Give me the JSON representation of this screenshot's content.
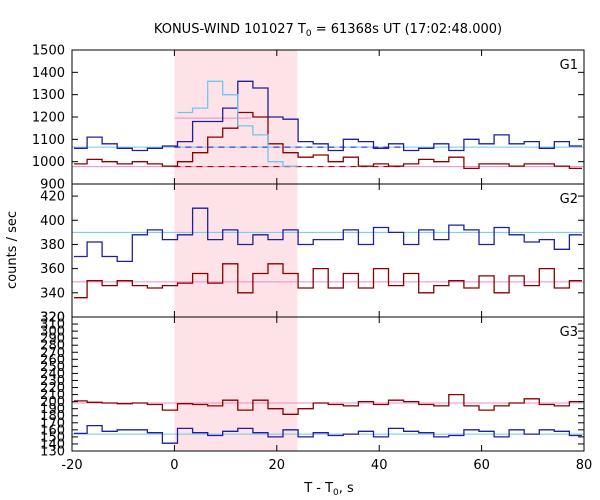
{
  "chart_data": {
    "type": "line",
    "title": "KONUS-WIND 101027 T",
    "title_sub": "0",
    "title_rest": " = 61368s UT (17:02:48.000)",
    "xlabel": "T - T",
    "xlabel_sub": "0",
    "xlabel_rest": ", s",
    "ylabel": "counts / sec",
    "xlim": [
      -20,
      80
    ],
    "xticks": [
      -20,
      0,
      20,
      40,
      60,
      80
    ],
    "grid": false,
    "colors": {
      "blue": "#1f1f9e",
      "red": "#8b0000",
      "lightblue": "#6ec6f0",
      "pink": "#f08cc8",
      "shade": "#fde3e7"
    },
    "highlight_interval": [
      0,
      24
    ],
    "bin_width": 2.944,
    "x_start": -20,
    "panels": [
      {
        "label": "G1",
        "ylim": [
          900,
          1500
        ],
        "yticks": [
          900,
          1000,
          1100,
          1200,
          1300,
          1400,
          1500
        ],
        "series": [
          {
            "color": "blue",
            "values": [
              1060,
              1110,
              1080,
              1060,
              1050,
              1060,
              1070,
              1090,
              1180,
              1180,
              1240,
              1360,
              1330,
              1200,
              1190,
              1090,
              1080,
              1050,
              1100,
              1090,
              1060,
              1080,
              1050,
              1060,
              1080,
              1050,
              1100,
              1080,
              1120,
              1080,
              1090,
              1060,
              1090,
              1070,
              1060
            ]
          },
          {
            "color": "red",
            "values": [
              990,
              1010,
              1000,
              990,
              1000,
              990,
              980,
              1000,
              1040,
              1110,
              1150,
              1220,
              1200,
              1080,
              1040,
              1020,
              1030,
              1000,
              1020,
              980,
              990,
              980,
              990,
              1010,
              1000,
              1020,
              970,
              990,
              990,
              980,
              990,
              990,
              980,
              970,
              990
            ]
          },
          {
            "color": "lightblue",
            "values": [
              null,
              null,
              null,
              null,
              null,
              null,
              null,
              1220,
              1240,
              1360,
              1300,
              1160,
              1120,
              1000,
              980
            ]
          }
        ],
        "fits": [
          {
            "color": "lightblue",
            "value": 1065
          },
          {
            "color": "pink",
            "value": 978
          },
          {
            "color": "blue",
            "value": 1065,
            "dashed": true,
            "range": [
              0,
              45
            ]
          },
          {
            "color": "red",
            "value": 978,
            "dashed": true,
            "range": [
              0,
              45
            ]
          },
          {
            "color": "pink",
            "value": 1195,
            "range": [
              0,
              15
            ]
          }
        ]
      },
      {
        "label": "G2",
        "ylim": [
          320,
          430
        ],
        "yticks": [
          320,
          340,
          360,
          380,
          400,
          420
        ],
        "series": [
          {
            "color": "blue",
            "values": [
              370,
              382,
              370,
              366,
              388,
              392,
              384,
              388,
              410,
              384,
              392,
              380,
              388,
              384,
              392,
              380,
              384,
              384,
              392,
              380,
              394,
              390,
              380,
              392,
              384,
              396,
              392,
              380,
              394,
              388,
              382,
              384,
              376,
              388,
              380
            ]
          },
          {
            "color": "red",
            "values": [
              336,
              350,
              346,
              350,
              346,
              344,
              346,
              348,
              356,
              348,
              364,
              340,
              356,
              364,
              356,
              344,
              360,
              344,
              356,
              344,
              360,
              346,
              356,
              340,
              346,
              350,
              344,
              354,
              340,
              354,
              346,
              360,
              344,
              350,
              346
            ]
          }
        ],
        "fits": [
          {
            "color": "lightblue",
            "value": 390
          },
          {
            "color": "pink",
            "value": 349
          }
        ]
      },
      {
        "label": "G3",
        "ylim": [
          130,
          320
        ],
        "yticks": [
          130,
          140,
          150,
          160,
          170,
          180,
          190,
          200,
          210,
          220,
          230,
          240,
          250,
          260,
          270,
          280,
          290,
          300,
          310,
          320
        ],
        "series": [
          {
            "color": "red",
            "values": [
              201,
              199,
              198,
              197,
              198,
              196,
              188,
              197,
              196,
              194,
              202,
              188,
              202,
              190,
              182,
              190,
              198,
              196,
              194,
              200,
              196,
              202,
              200,
              196,
              194,
              210,
              194,
              188,
              194,
              198,
              204,
              196,
              194,
              200,
              196
            ]
          },
          {
            "color": "blue",
            "values": [
              155,
              166,
              158,
              160,
              160,
              156,
              141,
              162,
              156,
              152,
              158,
              162,
              156,
              150,
              160,
              150,
              156,
              152,
              154,
              158,
              150,
              162,
              158,
              156,
              150,
              152,
              160,
              158,
              150,
              160,
              154,
              160,
              158,
              152,
              158
            ]
          }
        ],
        "fits": [
          {
            "color": "pink",
            "value": 198
          },
          {
            "color": "lightblue",
            "value": 154
          }
        ]
      }
    ]
  }
}
